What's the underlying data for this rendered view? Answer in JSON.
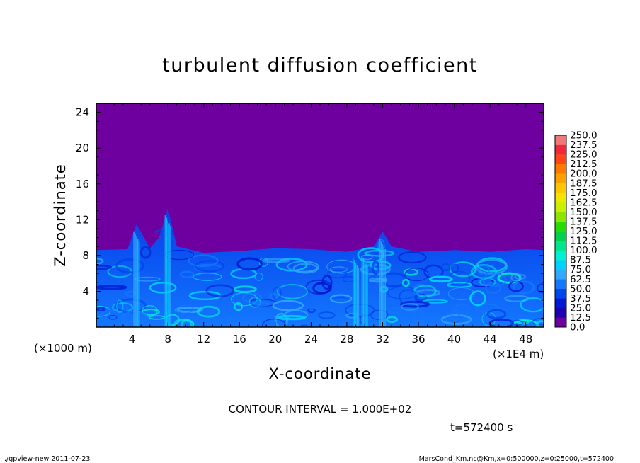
{
  "chart_data": {
    "type": "heatmap",
    "title": "turbulent diffusion coefficient",
    "xlabel": "X-coordinate",
    "ylabel": "Z-coordinate",
    "x_unit": "(×1E4 m)",
    "y_unit": "(×1000 m)",
    "x_ticks": [
      4,
      8,
      12,
      16,
      20,
      24,
      28,
      32,
      36,
      40,
      44,
      48
    ],
    "y_ticks": [
      4,
      8,
      12,
      16,
      20,
      24
    ],
    "xlim": [
      0,
      50
    ],
    "ylim": [
      0,
      25
    ],
    "colorbar": {
      "levels": [
        "0.0",
        "12.5",
        "25.0",
        "37.5",
        "50.0",
        "62.5",
        "75.0",
        "87.5",
        "100.0",
        "112.5",
        "125.0",
        "137.5",
        "150.0",
        "162.5",
        "175.0",
        "187.5",
        "200.0",
        "212.5",
        "225.0",
        "237.5",
        "250.0"
      ],
      "colors": [
        "#6e00a0",
        "#1e00b4",
        "#0018d2",
        "#0046ee",
        "#1478ff",
        "#32a8ff",
        "#00d2ff",
        "#00f0d2",
        "#00e68c",
        "#00d250",
        "#28dc00",
        "#8ce600",
        "#c8f000",
        "#f0e600",
        "#ffc800",
        "#ffa000",
        "#ff7800",
        "#ff4614",
        "#f0283c",
        "#f07878"
      ]
    },
    "background_value": "0.0",
    "boundary_layer": [
      {
        "x": 0,
        "z": 8.6
      },
      {
        "x": 3.5,
        "z": 8.7
      },
      {
        "x": 4.5,
        "z": 11.5
      },
      {
        "x": 6,
        "z": 8.8
      },
      {
        "x": 7,
        "z": 10
      },
      {
        "x": 8,
        "z": 13.3
      },
      {
        "x": 9,
        "z": 9
      },
      {
        "x": 12,
        "z": 8.3
      },
      {
        "x": 16,
        "z": 8.5
      },
      {
        "x": 20,
        "z": 8.8
      },
      {
        "x": 24,
        "z": 8.7
      },
      {
        "x": 28,
        "z": 8.4
      },
      {
        "x": 31,
        "z": 9
      },
      {
        "x": 32,
        "z": 10.7
      },
      {
        "x": 33,
        "z": 9
      },
      {
        "x": 36,
        "z": 8.4
      },
      {
        "x": 40,
        "z": 8.6
      },
      {
        "x": 44,
        "z": 8.4
      },
      {
        "x": 48,
        "z": 8.7
      },
      {
        "x": 50,
        "z": 8.6
      }
    ]
  },
  "annotations": {
    "contour_interval": "CONTOUR INTERVAL = 1.000E+02",
    "time": "t=572400 s",
    "footer_left": "./gpview-new  2011-07-23",
    "footer_right": "MarsCond_Km.nc@Km,x=0:500000,z=0:25000,t=572400"
  }
}
